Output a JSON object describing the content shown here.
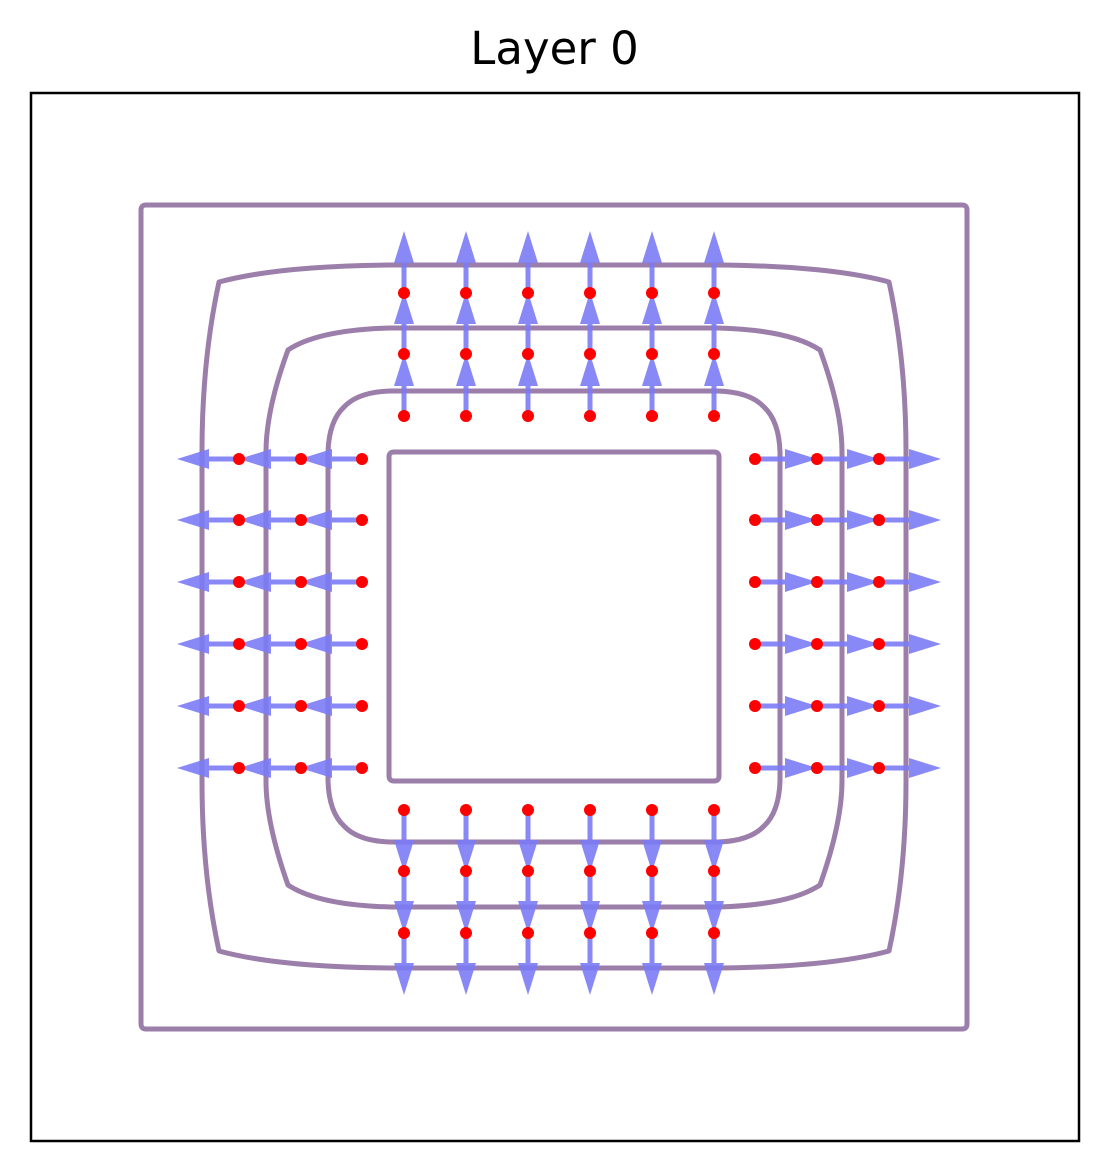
{
  "title": "Layer 0",
  "colors": {
    "frame": "#000000",
    "contour": "#9c7eab",
    "arrow": "#7b7bf5",
    "arrow_dark": "#5a48c8",
    "point": "#ff0000"
  },
  "contour_levels": 5,
  "points_per_side_per_ring": 6,
  "arrow_rings": 3,
  "sides": [
    "top",
    "right",
    "bottom",
    "left"
  ]
}
